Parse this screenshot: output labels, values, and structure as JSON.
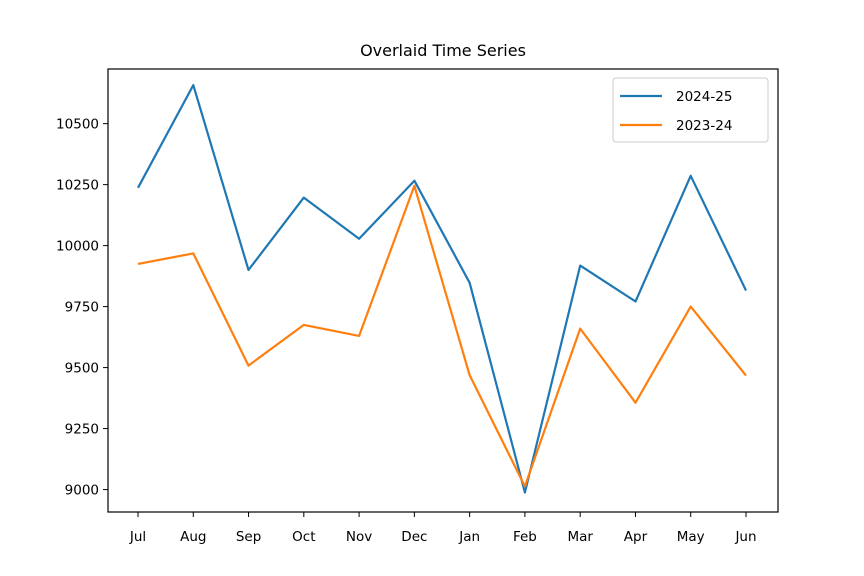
{
  "chart_data": {
    "type": "line",
    "title": "Overlaid Time Series",
    "xlabel": "",
    "ylabel": "",
    "categories": [
      "Jul",
      "Aug",
      "Sep",
      "Oct",
      "Nov",
      "Dec",
      "Jan",
      "Feb",
      "Mar",
      "Apr",
      "May",
      "Jun"
    ],
    "ylim": [
      8908,
      10724
    ],
    "yticks": [
      9000,
      9250,
      9500,
      9750,
      10000,
      10250,
      10500
    ],
    "grid": false,
    "legend_position": "top-right",
    "series": [
      {
        "name": "2024-25",
        "color": "#1f77b4",
        "values": [
          10237,
          10658,
          9900,
          10197,
          10028,
          10266,
          9848,
          8988,
          9918,
          9771,
          10286,
          9816
        ]
      },
      {
        "name": "2023-24",
        "color": "#ff7f0e",
        "values": [
          9925,
          9968,
          9508,
          9675,
          9630,
          10245,
          9469,
          9013,
          9660,
          9356,
          9750,
          9467
        ]
      }
    ]
  }
}
